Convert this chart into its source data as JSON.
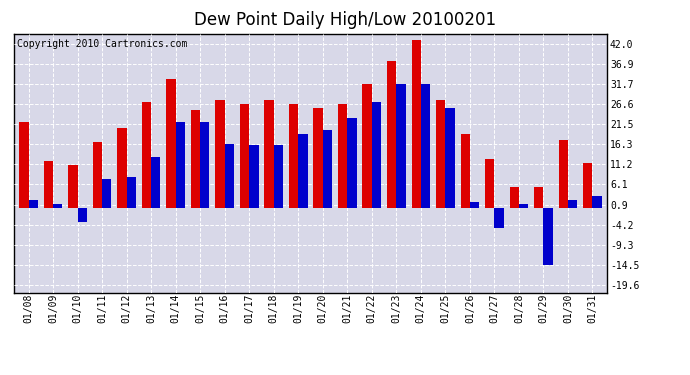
{
  "title": "Dew Point Daily High/Low 20100201",
  "copyright": "Copyright 2010 Cartronics.com",
  "dates": [
    "01/08",
    "01/09",
    "01/10",
    "01/11",
    "01/12",
    "01/13",
    "01/14",
    "01/15",
    "01/16",
    "01/17",
    "01/18",
    "01/19",
    "01/20",
    "01/21",
    "01/22",
    "01/23",
    "01/24",
    "01/25",
    "01/26",
    "01/27",
    "01/28",
    "01/29",
    "01/30",
    "01/31"
  ],
  "highs": [
    22.0,
    12.0,
    11.0,
    17.0,
    20.5,
    27.0,
    33.0,
    25.0,
    27.5,
    26.6,
    27.5,
    26.6,
    25.5,
    26.6,
    31.7,
    37.5,
    43.0,
    27.5,
    19.0,
    12.5,
    5.5,
    5.5,
    17.5,
    11.5
  ],
  "lows": [
    2.0,
    1.0,
    -3.5,
    7.5,
    8.0,
    13.0,
    22.0,
    22.0,
    16.5,
    16.0,
    16.0,
    19.0,
    20.0,
    23.0,
    27.0,
    31.7,
    31.7,
    25.5,
    1.5,
    -5.0,
    1.0,
    -14.5,
    2.0,
    3.0
  ],
  "high_color": "#dd0000",
  "low_color": "#0000cc",
  "background_color": "#ffffff",
  "plot_bg_color": "#d8d8e8",
  "yticks": [
    42.0,
    36.9,
    31.7,
    26.6,
    21.5,
    16.3,
    11.2,
    6.1,
    0.9,
    -4.2,
    -9.3,
    -14.5,
    -19.6
  ],
  "ylim": [
    -21.5,
    44.5
  ],
  "bar_width": 0.38,
  "title_fontsize": 12,
  "tick_fontsize": 7,
  "copyright_fontsize": 7
}
